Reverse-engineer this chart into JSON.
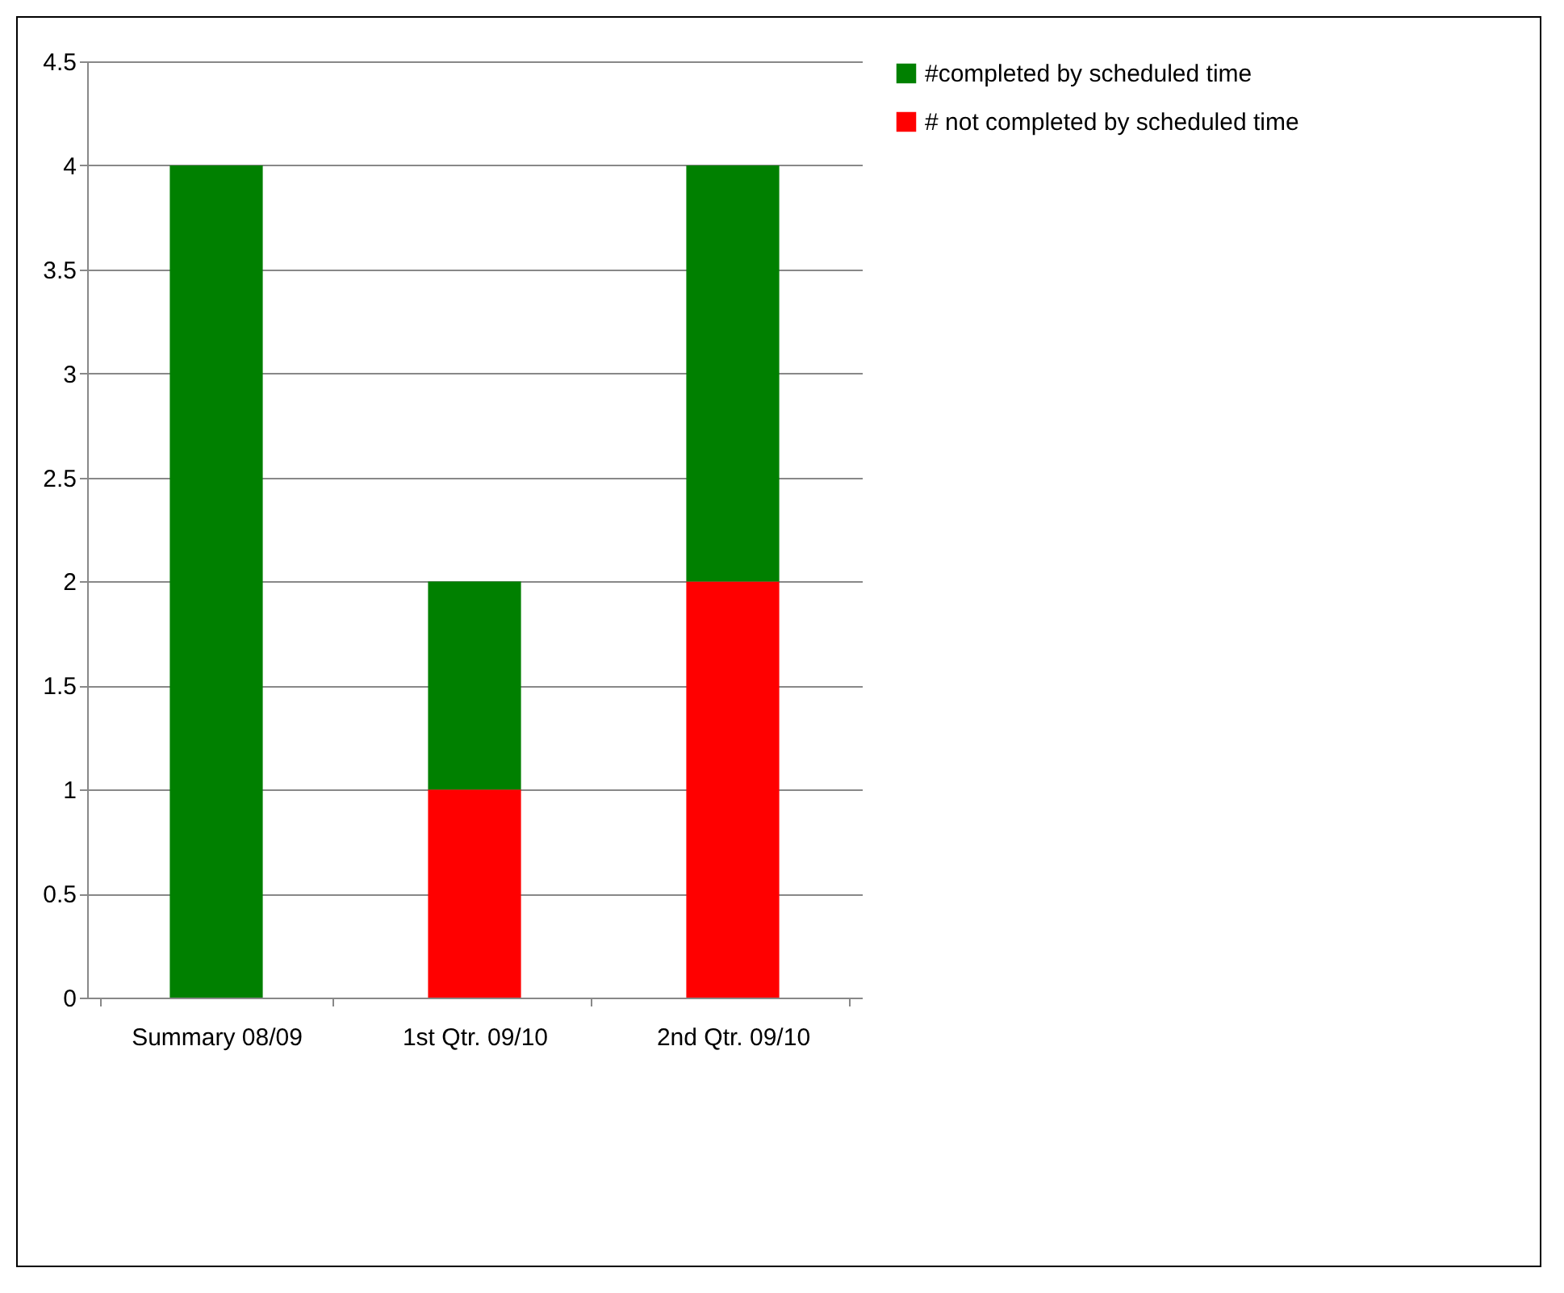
{
  "chart_data": {
    "type": "bar",
    "stacked": true,
    "categories": [
      "Summary 08/09",
      "1st Qtr. 09/10",
      "2nd Qtr. 09/10"
    ],
    "series": [
      {
        "name": "# not completed by scheduled time",
        "color": "#ff0000",
        "values": [
          0,
          1,
          2
        ]
      },
      {
        "name": "#completed by scheduled time",
        "color": "#008000",
        "values": [
          4,
          1,
          2
        ]
      }
    ],
    "ylim": [
      0,
      4.5
    ],
    "yticks": [
      0,
      0.5,
      1,
      1.5,
      2,
      2.5,
      3,
      3.5,
      4,
      4.5
    ],
    "grid": "y",
    "legend": "right"
  }
}
